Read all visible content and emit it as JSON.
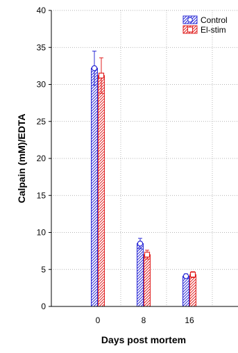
{
  "chart_data": {
    "type": "bar",
    "title": "",
    "xlabel": "Days post mortem",
    "ylabel": "Calpain (mM)/EDTA",
    "categories": [
      "0",
      "8",
      "16"
    ],
    "ylim": [
      0,
      40
    ],
    "yticks": [
      0,
      5,
      10,
      15,
      20,
      25,
      30,
      35,
      40
    ],
    "grid": true,
    "legend_position": "top-right",
    "series": [
      {
        "name": "Control",
        "color": "#2b2bd6",
        "marker": "circle",
        "values": [
          32.2,
          8.5,
          4.1
        ],
        "errors": [
          2.3,
          0.7,
          0.3
        ]
      },
      {
        "name": "El-stim",
        "color": "#e02020",
        "marker": "square",
        "values": [
          31.2,
          7.0,
          4.3
        ],
        "errors": [
          2.4,
          0.6,
          0.4
        ]
      }
    ]
  }
}
